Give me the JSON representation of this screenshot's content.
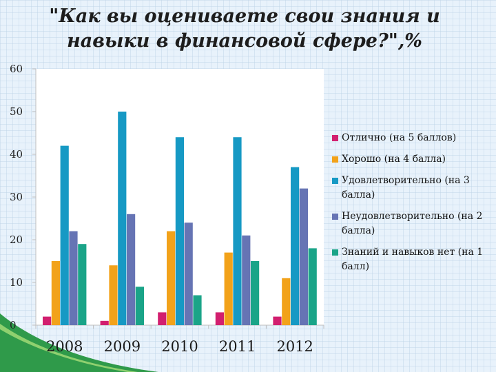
{
  "title": "\"Как вы оцениваете свои знания и навыки в финансовой сфере?\",%",
  "chart_data": {
    "type": "bar",
    "categories": [
      "2008",
      "2009",
      "2010",
      "2011",
      "2012"
    ],
    "ylim": [
      0,
      60
    ],
    "yticks": [
      0,
      10,
      20,
      30,
      40,
      50,
      60
    ],
    "grid": false,
    "legend_position": "right",
    "series": [
      {
        "name": "Отлично (на 5 баллов)",
        "color": "#d21f6f",
        "values": [
          2,
          1,
          3,
          3,
          2
        ]
      },
      {
        "name": "Хорошо (на 4 балла)",
        "color": "#f2a21a",
        "values": [
          15,
          14,
          22,
          17,
          11
        ]
      },
      {
        "name": "Удовлетворительно (на 3 балла)",
        "color": "#1699c4",
        "values": [
          42,
          50,
          44,
          44,
          37
        ]
      },
      {
        "name": "Неудовлетворительно (на 2 балла)",
        "color": "#6674b4",
        "values": [
          22,
          26,
          24,
          21,
          32
        ]
      },
      {
        "name": "Знаний и навыков нет (на 1 балл)",
        "color": "#1aa488",
        "values": [
          19,
          9,
          7,
          15,
          18
        ]
      }
    ]
  }
}
